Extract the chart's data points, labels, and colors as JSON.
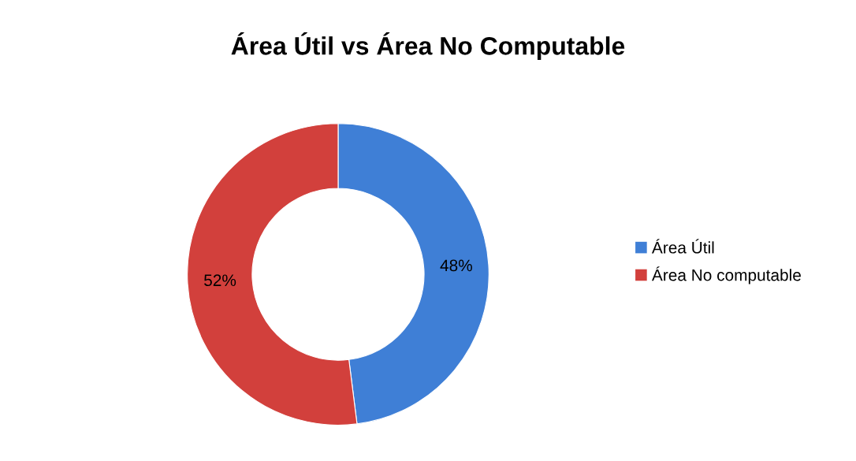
{
  "chart_data": {
    "type": "donut",
    "title": "Área Útil vs Área No Computable",
    "categories": [
      "Área Útil",
      "Área No computable"
    ],
    "values": [
      48,
      52
    ],
    "colors": [
      "#3f7fd6",
      "#d2403c"
    ],
    "value_labels": [
      "48%",
      "52%"
    ],
    "legend": "right"
  }
}
